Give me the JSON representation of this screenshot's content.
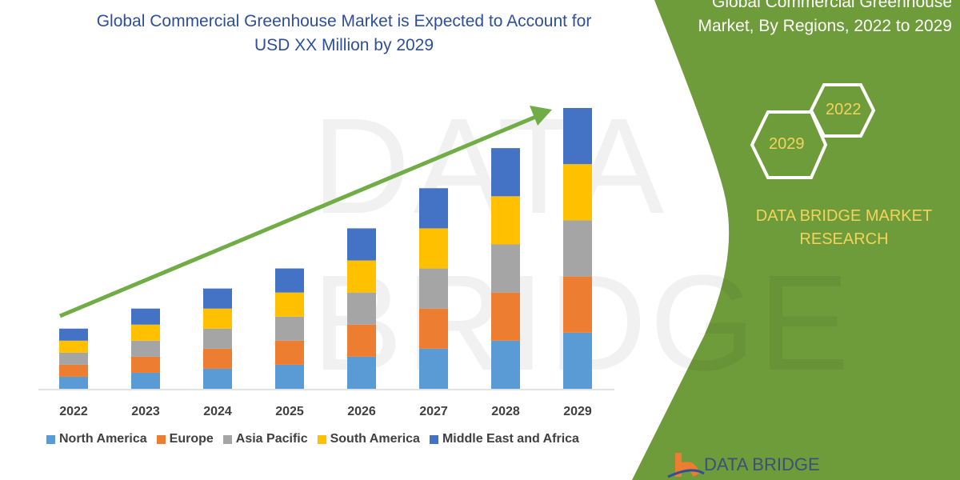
{
  "header": {
    "title_line1": "Global Commercial Greenhouse Market is Expected to Account for",
    "title_line2": "USD XX Million by 2029"
  },
  "side_panel": {
    "title_line1": "Global Commercial Greenhouse",
    "title_line2": "Market, By Regions, 2022 to 2029",
    "hex_top": "2022",
    "hex_bottom": "2029",
    "brand_line1": "DATA BRIDGE MARKET",
    "brand_line2": "RESEARCH",
    "logo_text": "DATA BRIDGE",
    "watermark": "DATA BRIDGE",
    "panel_color": "#6f9c3a",
    "accent_text_color": "#f2d35b"
  },
  "chart_data": {
    "type": "bar",
    "stacked": true,
    "categories": [
      "2022",
      "2023",
      "2024",
      "2025",
      "2026",
      "2027",
      "2028",
      "2029"
    ],
    "series": [
      {
        "name": "North America",
        "color": "#5b9bd5",
        "values": [
          15,
          20,
          25,
          30,
          40,
          50,
          60,
          70
        ]
      },
      {
        "name": "Europe",
        "color": "#ed7d31",
        "values": [
          15,
          20,
          25,
          30,
          40,
          50,
          60,
          70
        ]
      },
      {
        "name": "Asia Pacific",
        "color": "#a5a5a5",
        "values": [
          15,
          20,
          25,
          30,
          40,
          50,
          60,
          70
        ]
      },
      {
        "name": "South America",
        "color": "#ffc000",
        "values": [
          15,
          20,
          25,
          30,
          40,
          50,
          60,
          70
        ]
      },
      {
        "name": "Middle East and Africa",
        "color": "#4472c4",
        "values": [
          15,
          20,
          25,
          30,
          40,
          50,
          60,
          70
        ]
      }
    ],
    "ylim": [
      0,
      350
    ],
    "grid": false,
    "legend": "bottom",
    "trend_arrow_color": "#70ad47"
  }
}
